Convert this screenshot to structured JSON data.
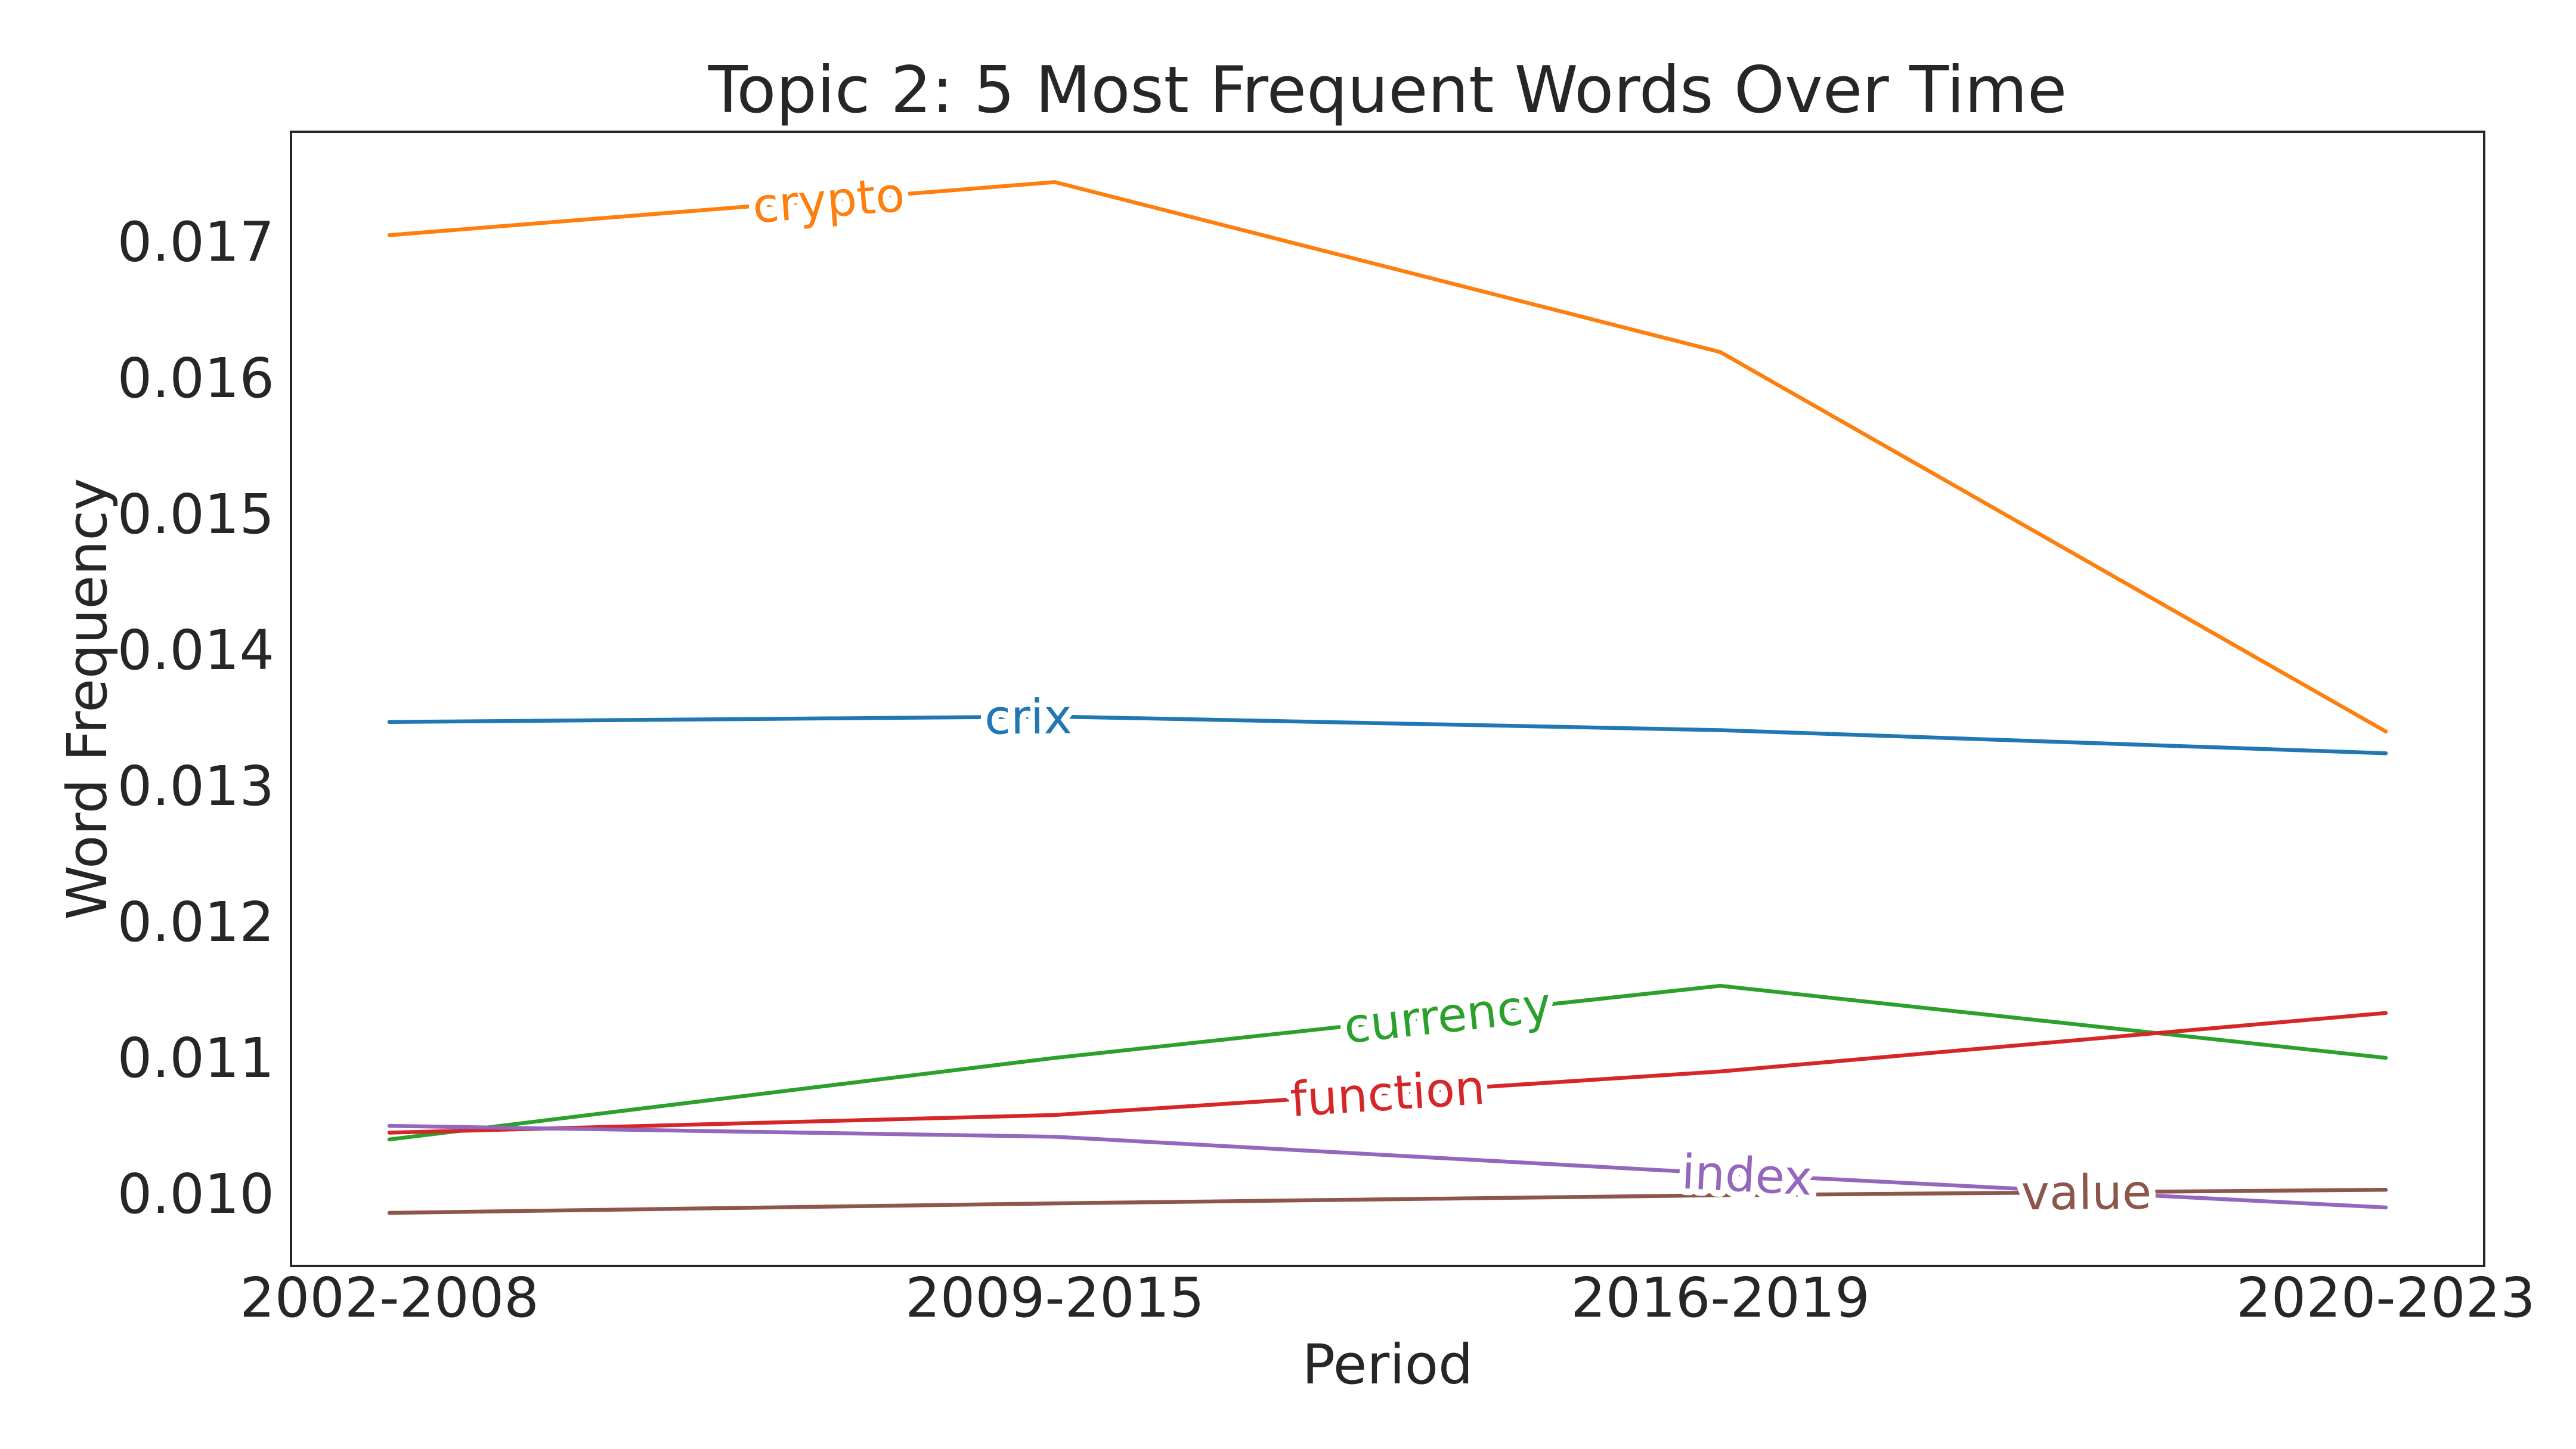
{
  "chart_data": {
    "type": "line",
    "title": "Topic 2: 5 Most Frequent Words Over Time",
    "xlabel": "Period",
    "ylabel": "Word Frequency",
    "categories": [
      "2002-2008",
      "2009-2015",
      "2016-2019",
      "2020-2023"
    ],
    "ylim": [
      0.00947,
      0.01781
    ],
    "yticks": [
      "0.010",
      "0.011",
      "0.012",
      "0.013",
      "0.014",
      "0.015",
      "0.016",
      "0.017"
    ],
    "grid": false,
    "legend": "none (inline labels on lines)",
    "series": [
      {
        "name": "crix",
        "color": "#1f77b4",
        "values": [
          0.01347,
          0.01351,
          0.01341,
          0.01324
        ],
        "label_at": 0.32
      },
      {
        "name": "crypto",
        "color": "#ff7f0e",
        "values": [
          0.01705,
          0.01744,
          0.01619,
          0.0134
        ],
        "label_at": 0.22
      },
      {
        "name": "currency",
        "color": "#2ca02c",
        "values": [
          0.0104,
          0.011,
          0.01153,
          0.011
        ],
        "label_at": 0.53
      },
      {
        "name": "function",
        "color": "#d62728",
        "values": [
          0.01045,
          0.01058,
          0.0109,
          0.01133
        ],
        "label_at": 0.5
      },
      {
        "name": "index",
        "color": "#9467bd",
        "values": [
          0.0105,
          0.01042,
          0.01015,
          0.0099
        ],
        "label_at": 0.68
      },
      {
        "name": "value",
        "color": "#8c564b",
        "values": [
          0.00986,
          0.00993,
          0.00999,
          0.01003
        ],
        "label_at": 0.85
      }
    ]
  }
}
